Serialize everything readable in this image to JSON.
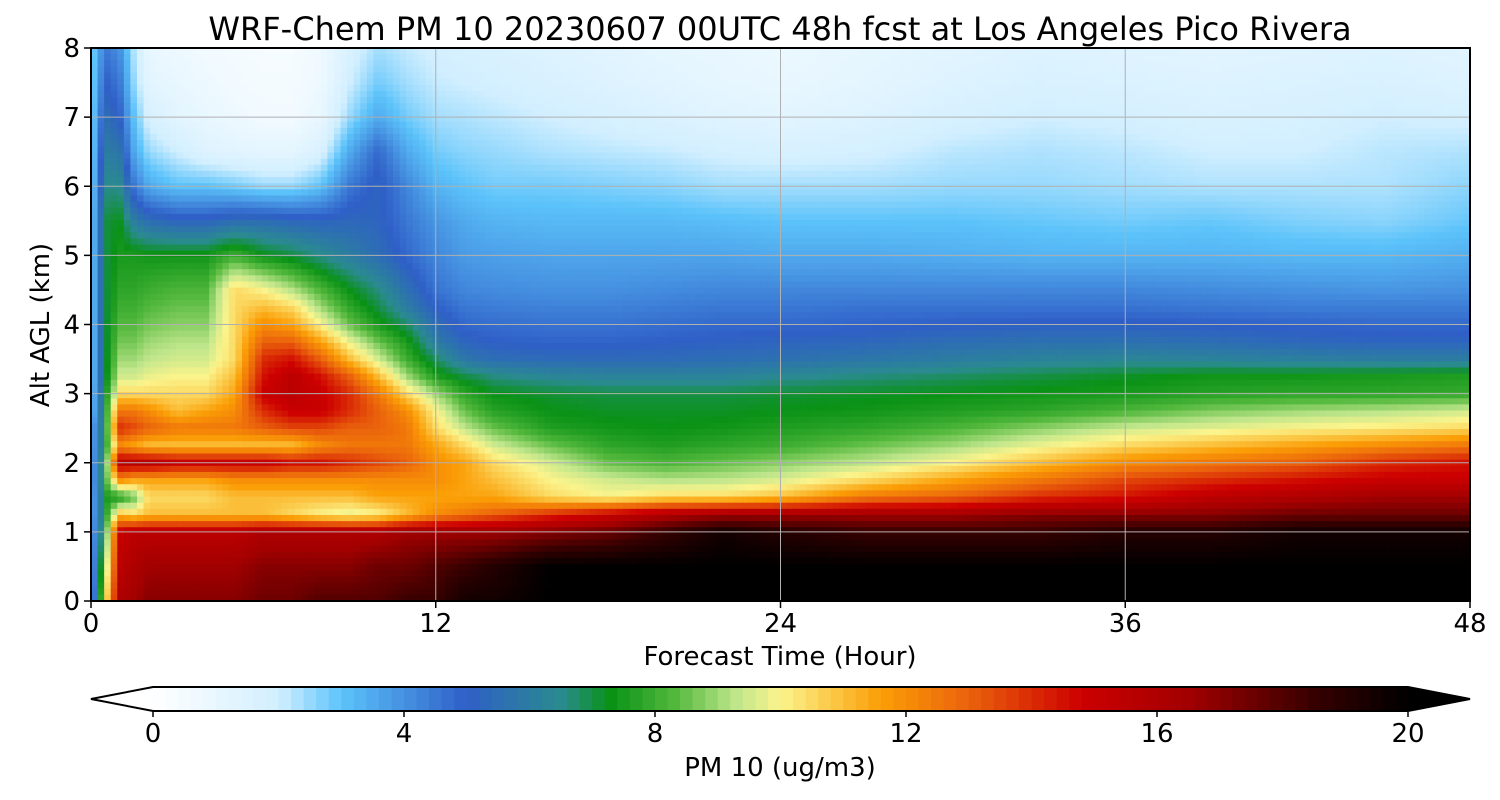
{
  "chart_data": {
    "type": "heatmap",
    "title": "WRF-Chem PM 10  20230607 00UTC 48h fcst at Los Angeles Pico Rivera",
    "xlabel": "Forecast Time (Hour)",
    "ylabel": "Alt AGL (km)",
    "xlim": [
      0,
      48
    ],
    "ylim": [
      0,
      8
    ],
    "x_ticks": [
      0,
      12,
      24,
      36,
      48
    ],
    "y_ticks": [
      0,
      1,
      2,
      3,
      4,
      5,
      6,
      7,
      8
    ],
    "grid": true,
    "colorbar": {
      "label": "PM 10  (ug/m3)",
      "range": [
        0,
        20
      ],
      "ticks": [
        0,
        4,
        8,
        12,
        16,
        20
      ],
      "extend": "both",
      "orientation": "horizontal",
      "stops": [
        {
          "value": 0,
          "color": "#ffffff"
        },
        {
          "value": 2,
          "color": "#d2efff"
        },
        {
          "value": 3,
          "color": "#5cc3fa"
        },
        {
          "value": 5,
          "color": "#2f5fc7"
        },
        {
          "value": 6.5,
          "color": "#2a8b8f"
        },
        {
          "value": 7.3,
          "color": "#0a9216"
        },
        {
          "value": 8.3,
          "color": "#52b83c"
        },
        {
          "value": 9.3,
          "color": "#c0e68c"
        },
        {
          "value": 10,
          "color": "#fbf48c"
        },
        {
          "value": 11.6,
          "color": "#fb9e06"
        },
        {
          "value": 13,
          "color": "#ea620c"
        },
        {
          "value": 14.8,
          "color": "#cd0000"
        },
        {
          "value": 16.5,
          "color": "#a20000"
        },
        {
          "value": 18.5,
          "color": "#370000"
        },
        {
          "value": 20,
          "color": "#000000"
        }
      ]
    },
    "x": [
      0,
      0.5,
      1,
      1.5,
      2,
      3,
      4,
      5,
      6,
      7,
      8,
      9,
      10,
      11,
      12,
      13,
      14,
      16,
      18,
      20,
      22,
      24,
      27,
      30,
      33,
      36,
      39,
      42,
      45,
      48
    ],
    "y": [
      0,
      0.5,
      1,
      1.25,
      1.5,
      1.75,
      2,
      2.25,
      2.5,
      2.75,
      3,
      3.25,
      3.5,
      3.75,
      4,
      4.25,
      4.5,
      5,
      5.5,
      6,
      6.5,
      7,
      7.5,
      8
    ],
    "z": [
      [
        3,
        10,
        16,
        16.5,
        17,
        17,
        17,
        17,
        17.5,
        17.5,
        18,
        18,
        18,
        18.5,
        18.5,
        19.5,
        19.5,
        20,
        20,
        20,
        20,
        20,
        20,
        20,
        20,
        20,
        20,
        20,
        20,
        20
      ],
      [
        3,
        9,
        15.5,
        16,
        16.5,
        16.5,
        16.5,
        16.5,
        17,
        17,
        17,
        17,
        17.5,
        17.5,
        18,
        18.5,
        19,
        20,
        20,
        20,
        20,
        20,
        20,
        20,
        20,
        20,
        20,
        20,
        20,
        20
      ],
      [
        3,
        8,
        15,
        15.5,
        15.5,
        15.5,
        15.5,
        15.5,
        16,
        16,
        16,
        16,
        16,
        16.5,
        16.5,
        16.5,
        16.5,
        17,
        17.5,
        18.5,
        19.5,
        19,
        18.5,
        18.5,
        18.5,
        19,
        19,
        19.5,
        19.5,
        19.5
      ],
      [
        3,
        7.5,
        11,
        10.5,
        11,
        11,
        11,
        11,
        11,
        10.5,
        10,
        9.7,
        10,
        11,
        12,
        12.5,
        13,
        14,
        15,
        16,
        16.5,
        16.5,
        16.5,
        16.5,
        17,
        17,
        17,
        17.5,
        17.5,
        17.5
      ],
      [
        3,
        7.5,
        7.5,
        8.5,
        10.5,
        10.5,
        10.5,
        11,
        11,
        11,
        11,
        11,
        11.5,
        11.5,
        11.5,
        11.5,
        11.5,
        10.5,
        10,
        10.5,
        10.5,
        11,
        12.5,
        13,
        14,
        14.5,
        15.5,
        16,
        16.5,
        16.5
      ],
      [
        3,
        8,
        12,
        11.5,
        11.5,
        11.5,
        11.5,
        12,
        12,
        12,
        12,
        12,
        12,
        12,
        12,
        11.5,
        11,
        10,
        9.5,
        9.2,
        9.3,
        9.6,
        10.5,
        11.5,
        12.5,
        13.5,
        14,
        14.5,
        15,
        15
      ],
      [
        3,
        8,
        15.5,
        15.5,
        15.5,
        15,
        15,
        15,
        15,
        14.5,
        14.5,
        14,
        13.5,
        13,
        12,
        11.5,
        10.5,
        9.5,
        8.5,
        8.2,
        8.5,
        8.8,
        9.3,
        10,
        11,
        12,
        12.5,
        13,
        14,
        14.5
      ],
      [
        3,
        7.5,
        12,
        11.5,
        11,
        11,
        11,
        11,
        11,
        11,
        12,
        12.5,
        12.5,
        12.5,
        11.5,
        10.5,
        9.5,
        8.5,
        7.8,
        7.6,
        7.8,
        8,
        8.5,
        9,
        9.8,
        10.5,
        11,
        11.5,
        12,
        12.5
      ],
      [
        3,
        7.5,
        14,
        13.5,
        13,
        12.5,
        12.5,
        12.5,
        13,
        13.5,
        13.5,
        13,
        13,
        12.5,
        10.5,
        9.3,
        8.5,
        7.6,
        7.4,
        7.3,
        7.4,
        7.6,
        7.8,
        8.2,
        8.8,
        9.4,
        9.7,
        10,
        10.2,
        10.5
      ],
      [
        2.5,
        7.5,
        12.5,
        12.5,
        12,
        11,
        11.5,
        12,
        14,
        15,
        15,
        14,
        13,
        12,
        10,
        8.5,
        7.7,
        7.3,
        7.2,
        7.2,
        7.2,
        7.3,
        7.4,
        7.6,
        7.8,
        8.2,
        8.7,
        9,
        9.2,
        9.5
      ],
      [
        2.5,
        7.3,
        10.5,
        10.5,
        10.5,
        10.5,
        10.5,
        11.5,
        15,
        15.5,
        15,
        14,
        12.5,
        10.5,
        9,
        7.8,
        7.3,
        7.1,
        7,
        7,
        7,
        7.1,
        7.2,
        7.3,
        7.4,
        7.5,
        7.7,
        7.8,
        7.8,
        7.9
      ],
      [
        2.5,
        7,
        9.5,
        9.5,
        9.8,
        10,
        10,
        11,
        14.5,
        15.5,
        14.5,
        13,
        11,
        9,
        7.6,
        7,
        6.6,
        6.3,
        6.2,
        6.2,
        6.2,
        6.4,
        6.6,
        6.8,
        7,
        7.2,
        7.4,
        7.4,
        7.5,
        7.6
      ],
      [
        2.5,
        7,
        9,
        9,
        9.3,
        9.5,
        9.5,
        10.5,
        14,
        14.5,
        13,
        11,
        9.5,
        8,
        6.8,
        5.8,
        5.5,
        5.4,
        5.4,
        5.4,
        5.5,
        5.6,
        5.8,
        6,
        6.2,
        6.3,
        6.2,
        6.1,
        6,
        6
      ],
      [
        2.5,
        7,
        8.6,
        8.6,
        9,
        9.2,
        9.2,
        10.5,
        13,
        13,
        11.5,
        9.8,
        8.5,
        7.5,
        6,
        5.2,
        5,
        4.9,
        4.9,
        5,
        5.1,
        5.2,
        5.3,
        5.5,
        5.6,
        5.6,
        5.5,
        5.3,
        5.2,
        5.2
      ],
      [
        2.5,
        7,
        8.3,
        8.3,
        8.6,
        8.8,
        8.8,
        10.5,
        12,
        11.5,
        10,
        8.5,
        7.5,
        6.8,
        5.5,
        4.8,
        4.7,
        4.6,
        4.6,
        4.7,
        4.8,
        4.8,
        4.9,
        5,
        5.1,
        5.1,
        5,
        4.9,
        4.8,
        4.8
      ],
      [
        2.5,
        7,
        8,
        8,
        8.3,
        8.5,
        8.5,
        10.5,
        11,
        10.5,
        9,
        7.8,
        7,
        6,
        5,
        4.5,
        4.4,
        4.3,
        4.3,
        4.4,
        4.5,
        4.5,
        4.6,
        4.6,
        4.6,
        4.6,
        4.5,
        4.4,
        4.4,
        4.4
      ],
      [
        2.5,
        7,
        7.8,
        7.8,
        8,
        8.2,
        8.2,
        10.5,
        10,
        9.2,
        8.2,
        7.3,
        6.6,
        5.6,
        4.6,
        4.2,
        4.1,
        4,
        4,
        4.1,
        4.2,
        4.2,
        4.2,
        4.2,
        4.2,
        4.2,
        4.1,
        4,
        3.9,
        4
      ],
      [
        2.5,
        7,
        7.5,
        7.5,
        7.4,
        7.4,
        7.4,
        8,
        7.3,
        7,
        6.5,
        6,
        5.5,
        4.8,
        4.2,
        3.8,
        3.7,
        3.6,
        3.6,
        3.6,
        3.6,
        3.5,
        3.5,
        3.4,
        3.3,
        3.3,
        3.3,
        3.2,
        3.2,
        3.4
      ],
      [
        2.5,
        7,
        7.3,
        6,
        5.5,
        5.2,
        5.2,
        5.5,
        5.5,
        5.3,
        5.2,
        5.3,
        5.2,
        4.5,
        3.9,
        3.5,
        3.3,
        3.2,
        3.2,
        3.2,
        3.1,
        3,
        3,
        3,
        2.9,
        2.8,
        2.9,
        2.7,
        2.6,
        2.9
      ],
      [
        2.5,
        6.5,
        6.5,
        4.5,
        3.5,
        3,
        3,
        2.8,
        2.5,
        2.5,
        3,
        4.5,
        5.2,
        4.2,
        3.3,
        3,
        2.8,
        2.8,
        2.7,
        2.6,
        2.4,
        2.4,
        2.4,
        2.5,
        2.5,
        2.4,
        2.3,
        2.3,
        2.3,
        2.6
      ],
      [
        2.5,
        6,
        5.8,
        3.5,
        2.5,
        2,
        1.5,
        1.3,
        1.2,
        1.2,
        1.7,
        3.5,
        4.8,
        3.5,
        2.8,
        2.6,
        2.5,
        2.3,
        2.2,
        2.1,
        1.9,
        1.8,
        1.9,
        2.2,
        2.3,
        2.2,
        2,
        2,
        2.2,
        2.3
      ],
      [
        2.5,
        5.5,
        5,
        3,
        1.8,
        1.3,
        1,
        0.8,
        0.6,
        0.6,
        1,
        2.5,
        3.5,
        2.8,
        2.4,
        2.3,
        2.2,
        2,
        1.8,
        1.6,
        1.4,
        1.3,
        1.5,
        1.8,
        2,
        1.9,
        1.7,
        1.8,
        2,
        1.9
      ],
      [
        2.5,
        5,
        4.5,
        2.5,
        1.3,
        1,
        0.8,
        0.6,
        0.5,
        0.5,
        0.8,
        2,
        2.8,
        2.4,
        2.1,
        2,
        1.9,
        1.7,
        1.5,
        1.3,
        1.1,
        1,
        1.2,
        1.5,
        1.7,
        1.6,
        1.5,
        1.6,
        1.7,
        1.5
      ],
      [
        2.5,
        4.5,
        4,
        2.2,
        1,
        0.8,
        0.6,
        0.5,
        0.4,
        0.4,
        0.7,
        1.7,
        2.4,
        2.1,
        1.9,
        1.8,
        1.7,
        1.5,
        1.3,
        1.1,
        1,
        0.9,
        1.1,
        1.3,
        1.5,
        1.4,
        1.3,
        1.4,
        1.5,
        1.3
      ]
    ]
  }
}
